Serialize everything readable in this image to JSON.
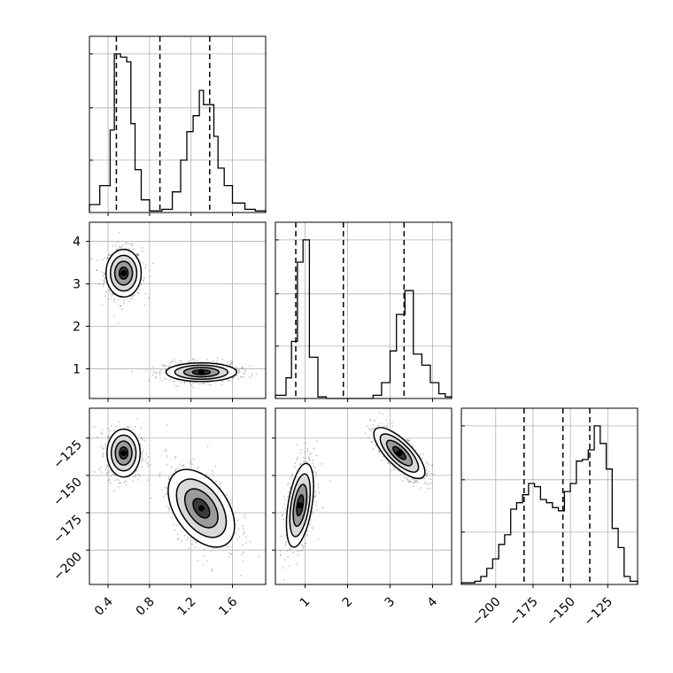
{
  "chart_data": {
    "type": "corner",
    "parameters": 3,
    "grid": true,
    "tick_labels": {
      "p0": [
        "0.4",
        "0.8",
        "1.2",
        "1.6"
      ],
      "p1": [
        "1",
        "2",
        "3",
        "4"
      ],
      "p2": [
        "−125",
        "−150",
        "−175",
        "−200"
      ]
    },
    "axis_ranges": {
      "p0": [
        0.22,
        1.92
      ],
      "p1": [
        0.3,
        4.45
      ],
      "p2": [
        -223,
        -105
      ]
    },
    "quantiles": {
      "p0": [
        0.48,
        0.9,
        1.38
      ],
      "p1": [
        0.78,
        1.9,
        3.33
      ],
      "p2": [
        -181,
        -155,
        -137
      ]
    },
    "marginals": {
      "p0": {
        "edges": [
          0.22,
          0.32,
          0.42,
          0.46,
          0.52,
          0.58,
          0.62,
          0.66,
          0.72,
          0.8,
          0.86,
          0.92,
          1.02,
          1.1,
          1.16,
          1.22,
          1.28,
          1.32,
          1.42,
          1.46,
          1.52,
          1.6,
          1.72,
          1.82,
          1.92
        ],
        "counts": [
          0.05,
          0.17,
          0.52,
          1.0,
          0.98,
          0.95,
          0.56,
          0.27,
          0.08,
          0.01,
          0.01,
          0.02,
          0.13,
          0.33,
          0.51,
          0.61,
          0.77,
          0.68,
          0.48,
          0.28,
          0.17,
          0.06,
          0.02,
          0.01
        ]
      },
      "p1": {
        "edges": [
          0.3,
          0.55,
          0.68,
          0.82,
          0.95,
          1.1,
          1.3,
          1.5,
          2.05,
          2.45,
          2.6,
          2.8,
          3.0,
          3.15,
          3.35,
          3.55,
          3.75,
          3.95,
          4.15,
          4.3,
          4.45
        ],
        "counts": [
          0.02,
          0.13,
          0.36,
          0.86,
          1.0,
          0.26,
          0.01,
          0.0,
          0.0,
          0.0,
          0.02,
          0.1,
          0.3,
          0.53,
          0.68,
          0.28,
          0.21,
          0.1,
          0.03,
          0.01
        ]
      },
      "p2": {
        "edges": [
          -223,
          -219,
          -214,
          -210,
          -206,
          -202,
          -198,
          -194,
          -190,
          -186,
          -182,
          -178,
          -174,
          -170,
          -166,
          -162,
          -158,
          -154,
          -150,
          -146,
          -142,
          -138,
          -134,
          -130,
          -126,
          -122,
          -118,
          -114,
          -110,
          -105
        ],
        "counts": [
          0.01,
          0.01,
          0.02,
          0.05,
          0.1,
          0.16,
          0.25,
          0.31,
          0.47,
          0.51,
          0.56,
          0.63,
          0.61,
          0.53,
          0.51,
          0.48,
          0.46,
          0.58,
          0.63,
          0.77,
          0.78,
          0.84,
          0.99,
          0.88,
          0.72,
          0.35,
          0.23,
          0.05,
          0.02
        ]
      }
    },
    "panels": [
      {
        "x": "p0",
        "y": "p1",
        "modes": [
          {
            "cx": 0.55,
            "cy": 3.25,
            "sx": 0.085,
            "sy": 0.28,
            "rho": 0.0
          },
          {
            "cx": 1.3,
            "cy": 0.92,
            "sx": 0.17,
            "sy": 0.11,
            "rho": 0.0
          }
        ]
      },
      {
        "x": "p0",
        "y": "p2",
        "modes": [
          {
            "cx": 0.55,
            "cy": -135,
            "sx": 0.08,
            "sy": 8,
            "rho": 0.0
          },
          {
            "cx": 1.3,
            "cy": -172,
            "sx": 0.16,
            "sy": 13,
            "rho": -0.45
          }
        ]
      },
      {
        "x": "p1",
        "y": "p2",
        "modes": [
          {
            "cx": 0.88,
            "cy": -170,
            "sx": 0.16,
            "sy": 14,
            "rho": 0.45
          },
          {
            "cx": 3.22,
            "cy": -135,
            "sx": 0.3,
            "sy": 8.5,
            "rho": -0.75
          }
        ]
      }
    ]
  }
}
